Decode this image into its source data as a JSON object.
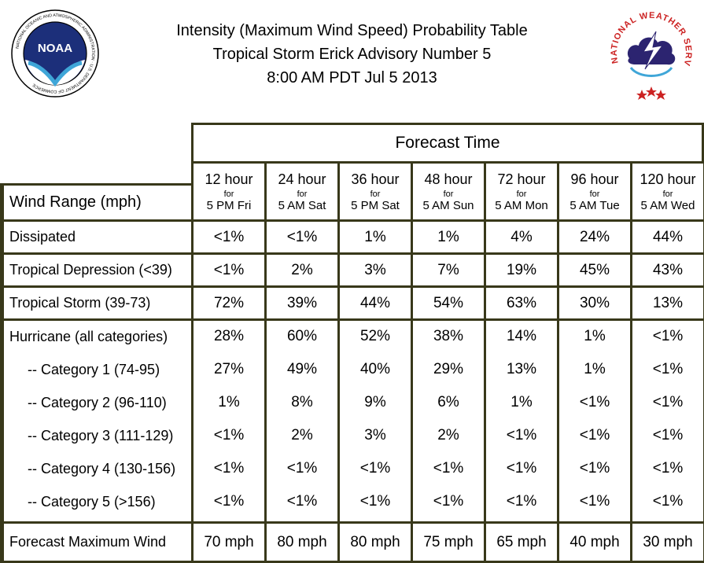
{
  "header": {
    "title_line1": "Intensity (Maximum Wind Speed) Probability Table",
    "title_line2": "Tropical Storm Erick Advisory Number 5",
    "title_line3": "8:00 AM PDT Jul 5 2013"
  },
  "logos": {
    "left": "NOAA",
    "left_ring_text": "NATIONAL OCEANIC AND ATMOSPHERIC ADMINISTRATION · U.S. DEPARTMENT OF COMMERCE",
    "right_ring_text": "NATIONAL WEATHER SERVICE"
  },
  "table": {
    "forecast_time_label": "Forecast Time",
    "row_header_label": "Wind Range (mph)",
    "columns": [
      {
        "hours": "12 hour",
        "for": "for",
        "when": "5 PM Fri"
      },
      {
        "hours": "24 hour",
        "for": "for",
        "when": "5 AM Sat"
      },
      {
        "hours": "36 hour",
        "for": "for",
        "when": "5 PM Sat"
      },
      {
        "hours": "48 hour",
        "for": "for",
        "when": "5 AM Sun"
      },
      {
        "hours": "72 hour",
        "for": "for",
        "when": "5 AM Mon"
      },
      {
        "hours": "96 hour",
        "for": "for",
        "when": "5 AM Tue"
      },
      {
        "hours": "120 hour",
        "for": "for",
        "when": "5 AM Wed"
      }
    ],
    "rows": [
      {
        "label": "Dissipated",
        "values": [
          "<1%",
          "<1%",
          "1%",
          "1%",
          "4%",
          "24%",
          "44%"
        ]
      },
      {
        "label": "Tropical Depression (<39)",
        "values": [
          "<1%",
          "2%",
          "3%",
          "7%",
          "19%",
          "45%",
          "43%"
        ]
      },
      {
        "label": "Tropical Storm (39-73)",
        "values": [
          "72%",
          "39%",
          "44%",
          "54%",
          "63%",
          "30%",
          "13%"
        ]
      }
    ],
    "hurricane_rows": [
      {
        "label": "Hurricane (all categories)",
        "values": [
          "28%",
          "60%",
          "52%",
          "38%",
          "14%",
          "1%",
          "<1%"
        ]
      },
      {
        "label": "-- Category 1 (74-95)",
        "values": [
          "27%",
          "49%",
          "40%",
          "29%",
          "13%",
          "1%",
          "<1%"
        ]
      },
      {
        "label": "-- Category 2 (96-110)",
        "values": [
          "1%",
          "8%",
          "9%",
          "6%",
          "1%",
          "<1%",
          "<1%"
        ]
      },
      {
        "label": "-- Category 3 (111-129)",
        "values": [
          "<1%",
          "2%",
          "3%",
          "2%",
          "<1%",
          "<1%",
          "<1%"
        ]
      },
      {
        "label": "-- Category 4 (130-156)",
        "values": [
          "<1%",
          "<1%",
          "<1%",
          "<1%",
          "<1%",
          "<1%",
          "<1%"
        ]
      },
      {
        "label": "-- Category 5 (>156)",
        "values": [
          "<1%",
          "<1%",
          "<1%",
          "<1%",
          "<1%",
          "<1%",
          "<1%"
        ]
      }
    ],
    "max_wind": {
      "label": "Forecast Maximum Wind",
      "values": [
        "70 mph",
        "80 mph",
        "80 mph",
        "75 mph",
        "65 mph",
        "40 mph",
        "30 mph"
      ]
    }
  }
}
